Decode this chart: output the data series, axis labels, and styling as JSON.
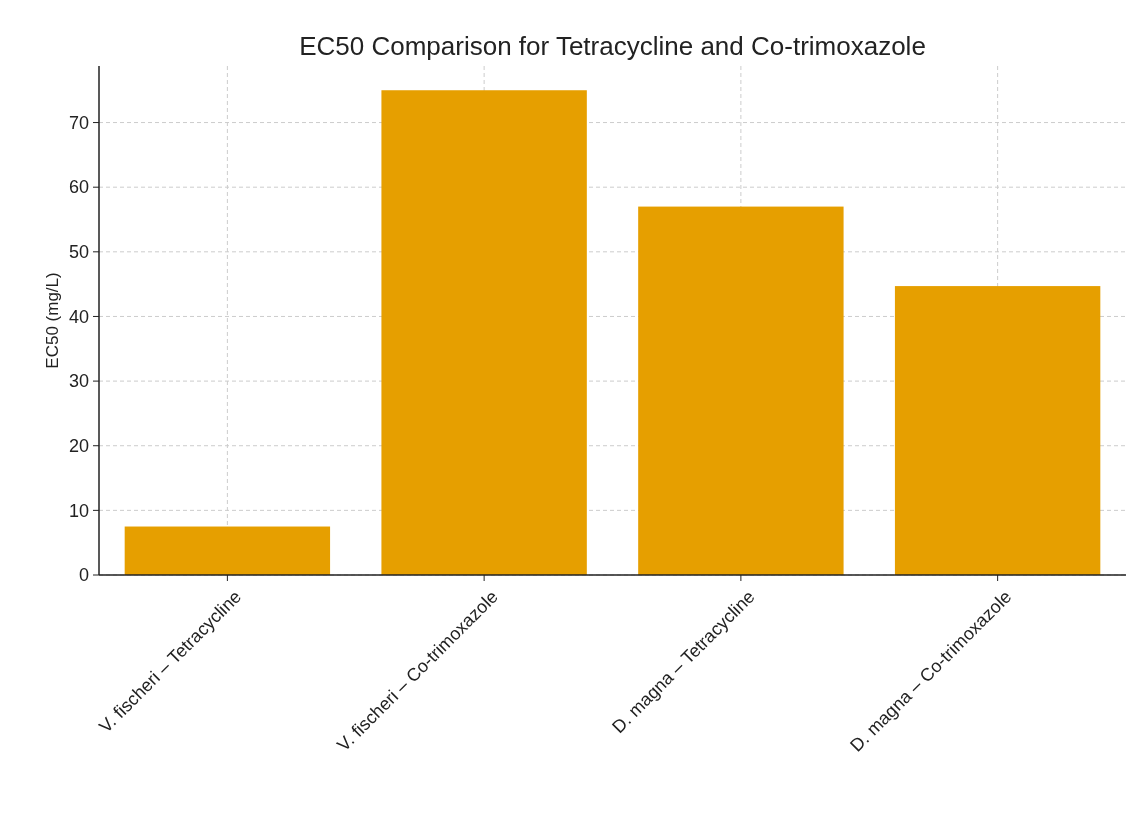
{
  "chart_data": {
    "type": "bar",
    "title": "EC50 Comparison for Tetracycline and Co-trimoxazole",
    "ylabel": "EC50 (mg/L)",
    "categories": [
      "V. fischeri – Tetracycline",
      "V. fischeri – Co-trimoxazole",
      "D. magna – Tetracycline",
      "D. magna – Co-trimoxazole"
    ],
    "values": [
      7.5,
      75,
      57,
      44.7
    ],
    "color": "#e69f00",
    "ylim": [
      0,
      78.75
    ],
    "yticks": [
      0,
      10,
      20,
      30,
      40,
      50,
      60,
      70
    ],
    "grid": true
  }
}
